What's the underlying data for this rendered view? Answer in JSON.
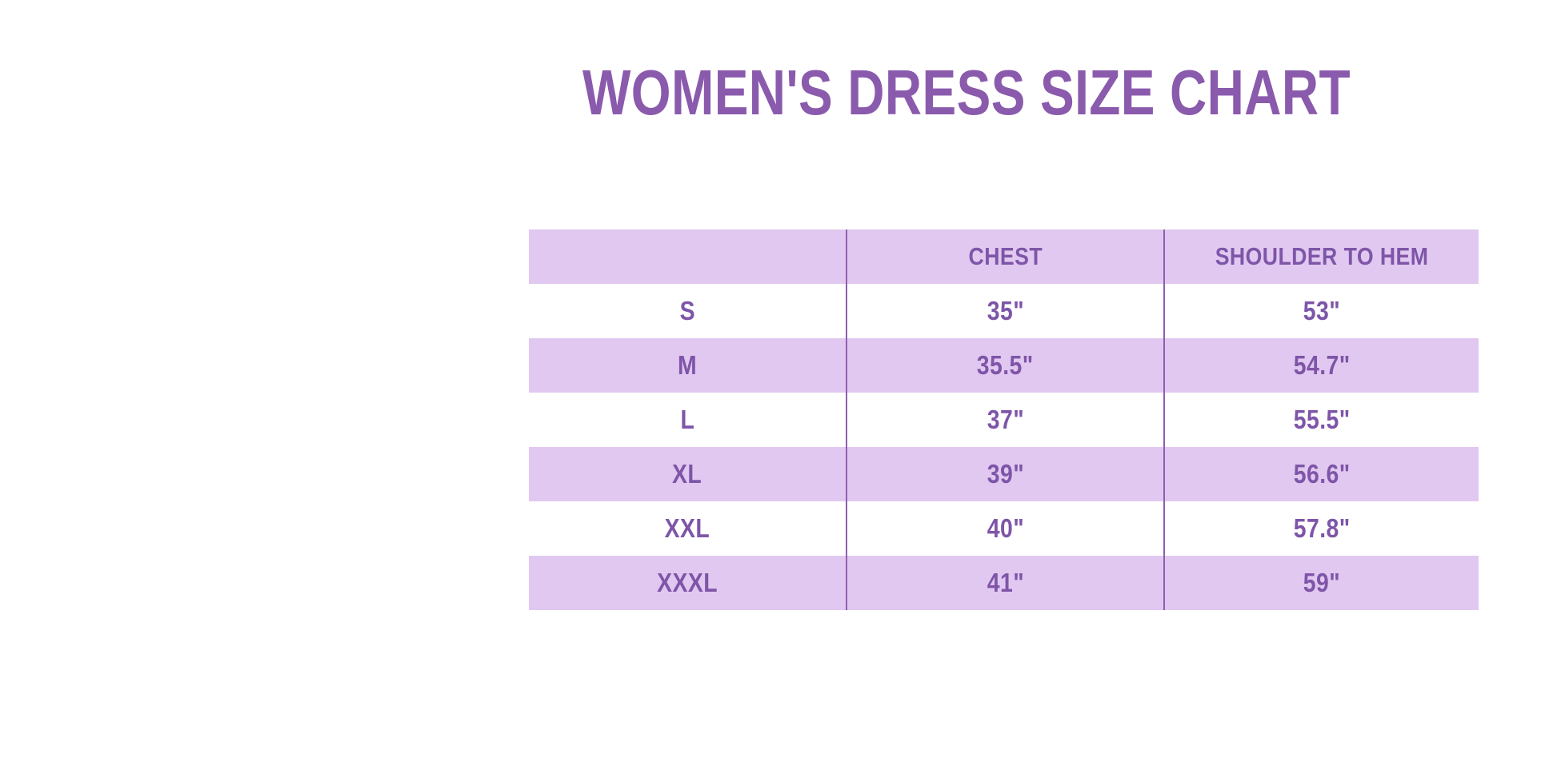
{
  "title": {
    "text": "WOMEN'S DRESS SIZE CHART"
  },
  "chart_data": {
    "type": "table",
    "title": "WOMEN'S DRESS SIZE CHART",
    "columns": [
      "",
      "CHEST",
      "SHOULDER TO HEM"
    ],
    "rows": [
      [
        "S",
        "35\"",
        "53\""
      ],
      [
        "M",
        "35.5\"",
        "54.7\""
      ],
      [
        "L",
        "37\"",
        "55.5\""
      ],
      [
        "XL",
        "39\"",
        "56.6\""
      ],
      [
        "XXL",
        "40\"",
        "57.8\""
      ],
      [
        "XXXL",
        "41\"",
        "59\""
      ]
    ],
    "layout_hints": {
      "header_row_background": "lavender",
      "data_rows": "alternating white and lavender starting with white",
      "column_dividers": "thin purple vertical lines through full table height",
      "text_alignment": "center"
    }
  },
  "colors": {
    "page_bg": "#ffffff",
    "title_text": "#8a5aad",
    "table_text": "#7e55a8",
    "row_lavender": "#e1c8f0",
    "divider": "#8e5fae"
  }
}
